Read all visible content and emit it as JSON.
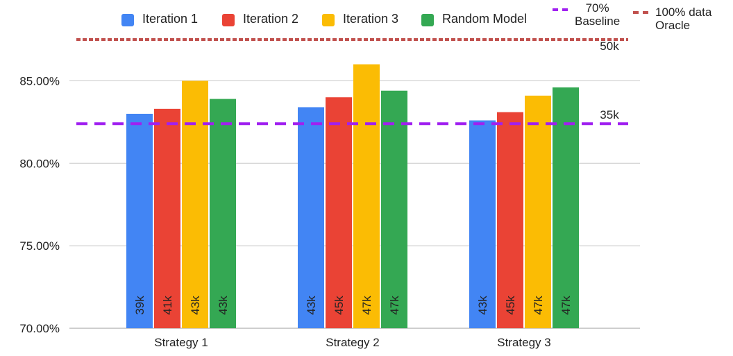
{
  "chart_data": {
    "type": "bar",
    "title": "",
    "xlabel": "",
    "ylabel": "",
    "categories": [
      "Strategy 1",
      "Strategy 2",
      "Strategy 3"
    ],
    "series": [
      {
        "name": "Iteration 1",
        "color": "#4285F4",
        "values": [
          83.0,
          83.4,
          82.6
        ],
        "labels": [
          "39k",
          "43k",
          "43k"
        ]
      },
      {
        "name": "Iteration 2",
        "color": "#EA4335",
        "values": [
          83.3,
          84.0,
          83.1
        ],
        "labels": [
          "41k",
          "45k",
          "45k"
        ]
      },
      {
        "name": "Iteration 3",
        "color": "#FBBC04",
        "values": [
          85.0,
          86.0,
          84.1
        ],
        "labels": [
          "43k",
          "47k",
          "47k"
        ]
      },
      {
        "name": "Random Model",
        "color": "#34A853",
        "values": [
          83.9,
          84.4,
          84.6
        ],
        "labels": [
          "43k",
          "47k",
          "47k"
        ]
      }
    ],
    "reference_lines": [
      {
        "name": "70% Baseline",
        "value": 82.4,
        "color": "#A020F0",
        "style": "dashed",
        "label": "35k"
      },
      {
        "name": "100% data Oracle",
        "value": 87.5,
        "color": "#C0504D",
        "style": "dashed",
        "label": "50k"
      }
    ],
    "ylim": [
      70,
      87.5
    ],
    "yticks": [
      "70.00%",
      "75.00%",
      "80.00%",
      "85.00%"
    ],
    "ytick_values": [
      70,
      75,
      80,
      85
    ],
    "grid": true,
    "legend_position": "top"
  },
  "legend": {
    "items": [
      {
        "label": "Iteration 1"
      },
      {
        "label": "Iteration 2"
      },
      {
        "label": "Iteration 3"
      },
      {
        "label": "Random Model"
      },
      {
        "label_line1": "70%",
        "label_line2": "Baseline"
      },
      {
        "label_line1": "100% data",
        "label_line2": "Oracle"
      }
    ]
  }
}
